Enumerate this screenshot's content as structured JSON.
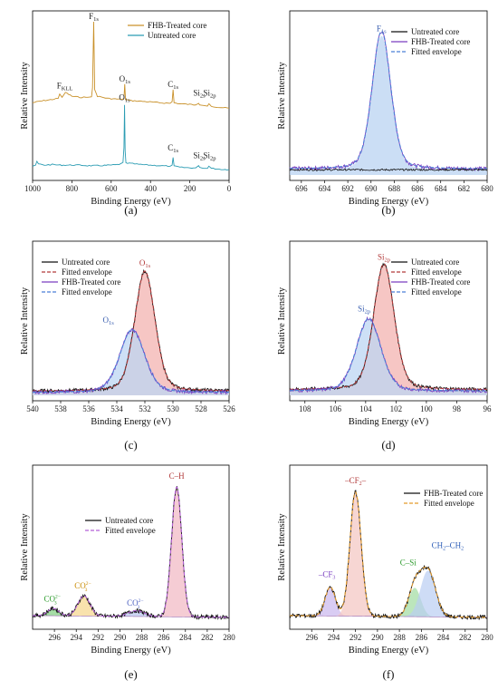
{
  "chart_data": [
    {
      "panel_label": "(a)",
      "type": "line",
      "xlabel": "Binding Energy (eV)",
      "ylabel": "Relative Intensity",
      "xlim": [
        1000,
        0
      ],
      "x_ticks": [
        "1000",
        "800",
        "600",
        "400",
        "200",
        "0"
      ],
      "legend": {
        "position": "top-right"
      },
      "series": [
        {
          "name": "FHB-Treated core",
          "color": "#c9912a",
          "x": [
            1000,
            960,
            900,
            870,
            862,
            850,
            833,
            800,
            760,
            720,
            700,
            695,
            689,
            684,
            670,
            620,
            580,
            545,
            535,
            531,
            527,
            500,
            460,
            420,
            350,
            300,
            290,
            285,
            280,
            250,
            200,
            170,
            155,
            150,
            130,
            110,
            103,
            99,
            90,
            60,
            30,
            0
          ],
          "y": [
            0.16,
            0.175,
            0.19,
            0.2,
            0.24,
            0.21,
            0.255,
            0.22,
            0.21,
            0.21,
            0.215,
            0.3,
            0.9,
            0.28,
            0.22,
            0.2,
            0.195,
            0.19,
            0.2,
            0.33,
            0.19,
            0.18,
            0.175,
            0.17,
            0.16,
            0.155,
            0.17,
            0.28,
            0.16,
            0.15,
            0.145,
            0.14,
            0.155,
            0.14,
            0.135,
            0.13,
            0.15,
            0.145,
            0.13,
            0.12,
            0.115,
            0.11
          ]
        },
        {
          "name": "Untreated core",
          "color": "#2b9cb3",
          "x": [
            1000,
            985,
            978,
            970,
            940,
            900,
            860,
            800,
            760,
            720,
            660,
            600,
            560,
            540,
            535,
            532,
            529,
            525,
            500,
            450,
            400,
            350,
            300,
            290,
            285,
            280,
            250,
            200,
            170,
            155,
            150,
            130,
            110,
            103,
            99,
            90,
            60,
            30,
            0
          ],
          "y": [
            -0.42,
            -0.41,
            -0.375,
            -0.4,
            -0.41,
            -0.405,
            -0.41,
            -0.41,
            -0.41,
            -0.415,
            -0.415,
            -0.41,
            -0.405,
            -0.385,
            -0.25,
            0.14,
            -0.28,
            -0.39,
            -0.395,
            -0.405,
            -0.41,
            -0.415,
            -0.42,
            -0.41,
            -0.34,
            -0.42,
            -0.43,
            -0.435,
            -0.435,
            -0.415,
            -0.43,
            -0.44,
            -0.44,
            -0.42,
            -0.425,
            -0.44,
            -0.445,
            -0.45,
            -0.45
          ]
        }
      ],
      "annotations": [
        {
          "text": "F1s",
          "x": 689,
          "y": 0.9
        },
        {
          "text": "FKLL",
          "x": 836,
          "y": 0.265
        },
        {
          "text": "O1s",
          "x": 531,
          "y": 0.33
        },
        {
          "text": "C1s",
          "x": 285,
          "y": 0.28
        },
        {
          "text": "Si2s",
          "x": 152,
          "y": 0.2
        },
        {
          "text": "Si2p",
          "x": 99,
          "y": 0.2
        },
        {
          "text": "O1s",
          "x": 532,
          "y": 0.16
        },
        {
          "text": "C1s",
          "x": 285,
          "y": -0.3
        },
        {
          "text": "Si2s",
          "x": 152,
          "y": -0.37
        },
        {
          "text": "Si2p",
          "x": 99,
          "y": -0.37
        }
      ]
    },
    {
      "panel_label": "(b)",
      "type": "line",
      "xlabel": "Binding Energy (eV)",
      "ylabel": "Relative Intensity",
      "xlim": [
        697,
        680
      ],
      "x_ticks": [
        "696",
        "694",
        "692",
        "690",
        "688",
        "686",
        "684",
        "682",
        "680"
      ],
      "legend": {
        "position": "top-right"
      },
      "series": [
        {
          "name": "Untreated core",
          "color": "#111111",
          "style": "solid"
        },
        {
          "name": "FHB-Treated core",
          "color": "#7a3fc0",
          "style": "solid",
          "peak_center": 689.1,
          "peak_height": 0.92,
          "fwhm": 1.9,
          "baseline": 0.04
        },
        {
          "name": "Fitted envelope",
          "color": "#4a7fd6",
          "style": "dashed",
          "peak_center": 689.1,
          "peak_height": 0.92,
          "fwhm": 1.9,
          "baseline": 0.04
        }
      ],
      "peak_fills": [
        {
          "center": 689.1,
          "height": 0.9,
          "fwhm": 1.9,
          "color": "#b9d3f2"
        }
      ],
      "annotations": [
        {
          "text": "F1s",
          "x": 689.1,
          "y": 0.96
        }
      ]
    },
    {
      "panel_label": "(c)",
      "type": "line",
      "xlabel": "Binding Energy (eV)",
      "ylabel": "Relative Intensity",
      "xlim": [
        540,
        526
      ],
      "x_ticks": [
        "540",
        "538",
        "536",
        "534",
        "532",
        "530",
        "528",
        "526"
      ],
      "legend": {
        "position": "top-left"
      },
      "series": [
        {
          "name": "Untreated core",
          "color": "#111111",
          "style": "solid",
          "peak_center": 532.0,
          "peak_height": 0.86,
          "fwhm": 1.7,
          "baseline": 0.03
        },
        {
          "name": "Fitted envelope",
          "color": "#b23a3a",
          "style": "dashed",
          "peak_center": 532.0,
          "peak_height": 0.86,
          "fwhm": 1.7,
          "baseline": 0.03
        },
        {
          "name": "FHB-Treated core",
          "color": "#7a3fc0",
          "style": "solid",
          "peak_center": 532.9,
          "peak_height": 0.45,
          "fwhm": 2.1,
          "baseline": 0.02
        },
        {
          "name": "Fitted envelope",
          "color": "#4a7fd6",
          "style": "dashed",
          "peak_center": 532.9,
          "peak_height": 0.45,
          "fwhm": 2.1,
          "baseline": 0.02
        }
      ],
      "peak_fills": [
        {
          "center": 532.0,
          "height": 0.86,
          "fwhm": 1.7,
          "color": "#f3b3b0"
        },
        {
          "center": 532.9,
          "height": 0.45,
          "fwhm": 2.1,
          "color": "#bcd6f3"
        }
      ],
      "annotations": [
        {
          "text": "O1s",
          "x": 532.0,
          "y": 0.93
        },
        {
          "text": "O1s",
          "x": 534.6,
          "y": 0.52
        }
      ]
    },
    {
      "panel_label": "(d)",
      "type": "line",
      "xlabel": "Binding Energy (eV)",
      "ylabel": "Relative Intensity",
      "xlim": [
        109,
        96
      ],
      "x_ticks": [
        "108",
        "106",
        "104",
        "102",
        "100",
        "98",
        "96"
      ],
      "legend": {
        "position": "top-right"
      },
      "series": [
        {
          "name": "Untreated core",
          "color": "#111111",
          "style": "solid",
          "peak_center": 102.8,
          "peak_height": 0.9,
          "fwhm": 1.6,
          "baseline": 0.04
        },
        {
          "name": "Fitted envelope",
          "color": "#b23a3a",
          "style": "dashed",
          "peak_center": 102.8,
          "peak_height": 0.9,
          "fwhm": 1.6,
          "baseline": 0.04
        },
        {
          "name": "FHB-Treated core",
          "color": "#7a3fc0",
          "style": "solid",
          "peak_center": 103.8,
          "peak_height": 0.52,
          "fwhm": 1.9,
          "baseline": 0.03
        },
        {
          "name": "Fitted envelope",
          "color": "#4a7fd6",
          "style": "dashed",
          "peak_center": 103.8,
          "peak_height": 0.52,
          "fwhm": 1.9,
          "baseline": 0.03
        }
      ],
      "peak_fills": [
        {
          "center": 102.8,
          "height": 0.9,
          "fwhm": 1.6,
          "color": "#f3b3b0"
        },
        {
          "center": 103.8,
          "height": 0.52,
          "fwhm": 1.9,
          "color": "#bcd6f3"
        }
      ],
      "annotations": [
        {
          "text": "Si2p",
          "x": 102.8,
          "y": 0.97
        },
        {
          "text": "Si2p",
          "x": 104.1,
          "y": 0.6
        }
      ]
    },
    {
      "panel_label": "(e)",
      "type": "line",
      "xlabel": "Binding Energy (eV)",
      "ylabel": "Relative Intensity",
      "xlim": [
        298,
        280
      ],
      "x_ticks": [
        "296",
        "294",
        "292",
        "290",
        "288",
        "286",
        "284",
        "282",
        "280"
      ],
      "legend": {
        "position": "center"
      },
      "series": [
        {
          "name": "Untreated core",
          "color": "#111111",
          "style": "solid"
        },
        {
          "name": "Fitted envelope",
          "color": "#b35fd6",
          "style": "dashed"
        }
      ],
      "components": [
        {
          "label": "CO3 2-",
          "center": 296.1,
          "height": 0.05,
          "fwhm": 1.2,
          "color": "#7fcf7f"
        },
        {
          "label": "CO3 2-",
          "center": 293.3,
          "height": 0.14,
          "fwhm": 1.3,
          "color": "#f7d58a"
        },
        {
          "label": "CO3 2-",
          "center": 288.5,
          "height": 0.04,
          "fwhm": 1.8,
          "color": "#b9c7f0"
        },
        {
          "label": "C-H",
          "center": 284.8,
          "height": 0.9,
          "fwhm": 1.1,
          "color": "#f1b7c2"
        }
      ],
      "annotations": [
        {
          "text": "CO",
          "x": 296.2,
          "y": 0.13,
          "color": "#2a9a2a"
        },
        {
          "text": "CO",
          "x": 293.4,
          "y": 0.22,
          "color": "#c98a00"
        },
        {
          "text": "CO",
          "x": 288.6,
          "y": 0.1,
          "color": "#4a5fc0"
        },
        {
          "text": "C–H",
          "x": 284.8,
          "y": 0.98,
          "color": "#b23a3a"
        }
      ]
    },
    {
      "panel_label": "(f)",
      "type": "line",
      "xlabel": "Binding Energy (eV)",
      "ylabel": "Relative Intensity",
      "xlim": [
        298,
        280
      ],
      "x_ticks": [
        "296",
        "294",
        "292",
        "290",
        "288",
        "286",
        "284",
        "282",
        "280"
      ],
      "legend": {
        "position": "top-right"
      },
      "series": [
        {
          "name": "FHB-Treated core",
          "color": "#111111",
          "style": "solid"
        },
        {
          "name": "Fitted envelope",
          "color": "#e39a2a",
          "style": "dashed"
        }
      ],
      "components": [
        {
          "label": "–CF3",
          "center": 294.3,
          "height": 0.2,
          "fwhm": 1.1,
          "color": "#c9b6ee"
        },
        {
          "label": "–CF2–",
          "center": 292.0,
          "height": 0.86,
          "fwhm": 1.2,
          "color": "#f3c4c0"
        },
        {
          "label": "C–Si",
          "center": 286.6,
          "height": 0.2,
          "fwhm": 1.3,
          "color": "#9fdc9f"
        },
        {
          "label": "CH2–CH2",
          "center": 285.4,
          "height": 0.32,
          "fwhm": 1.6,
          "color": "#b9cdf2"
        }
      ],
      "annotations": [
        {
          "text": "–CF3",
          "x": 294.6,
          "y": 0.3,
          "color": "#7a3fc0"
        },
        {
          "text": "–CF2–",
          "x": 292.0,
          "y": 0.95,
          "color": "#b23a3a"
        },
        {
          "text": "C–Si",
          "x": 287.2,
          "y": 0.38,
          "color": "#2a9a2a"
        },
        {
          "text": "CH2–CH2",
          "x": 283.6,
          "y": 0.5,
          "color": "#2f5fb8"
        }
      ]
    }
  ]
}
